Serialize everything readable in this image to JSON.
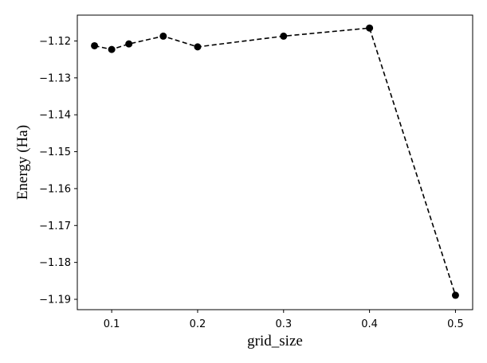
{
  "chart_data": {
    "type": "line",
    "title": "",
    "xlabel": "grid_size",
    "ylabel": "Energy (Ha)",
    "x": [
      0.08,
      0.1,
      0.12,
      0.16,
      0.2,
      0.3,
      0.4,
      0.5
    ],
    "series": [
      {
        "values": [
          -1.1213,
          -1.1223,
          -1.1208,
          -1.1187,
          -1.1216,
          -1.1187,
          -1.1165,
          -1.1889
        ],
        "color": "#000000",
        "line_style": "dashed",
        "marker": "circle"
      }
    ],
    "xlim": [
      0.06,
      0.52
    ],
    "ylim": [
      -1.1928,
      -1.113
    ],
    "xticks": [
      0.1,
      0.2,
      0.3,
      0.4,
      0.5
    ],
    "xtick_labels": [
      "0.1",
      "0.2",
      "0.3",
      "0.4",
      "0.5"
    ],
    "yticks": [
      -1.12,
      -1.13,
      -1.14,
      -1.15,
      -1.16,
      -1.17,
      -1.18,
      -1.19
    ],
    "ytick_labels": [
      "−1.12",
      "−1.13",
      "−1.14",
      "−1.15",
      "−1.16",
      "−1.17",
      "−1.18",
      "−1.19"
    ],
    "grid": false,
    "legend": "none"
  }
}
